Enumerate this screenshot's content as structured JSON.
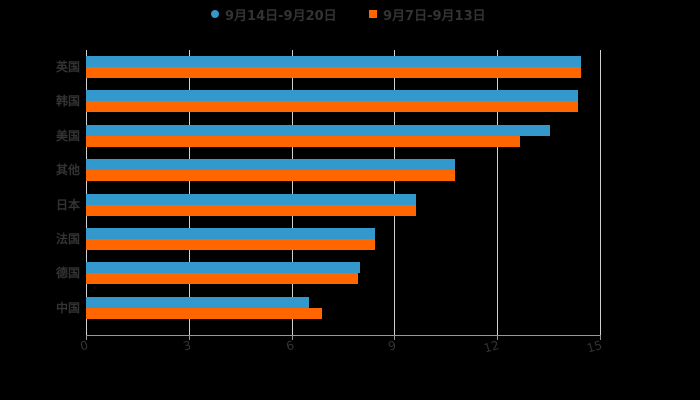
{
  "legend": {
    "series1_label": "9月14日-9月20日",
    "series2_label": "9月7日-9月13日"
  },
  "colors": {
    "series1": "#3399cc",
    "series2": "#ff6600",
    "background": "#000000",
    "text": "#333333",
    "grid": "#d0d0d0"
  },
  "chart_data": {
    "type": "bar",
    "orientation": "horizontal",
    "title": "",
    "xlabel": "",
    "ylabel": "",
    "categories": [
      "英国",
      "韩国",
      "美国",
      "其他",
      "日本",
      "法国",
      "德国",
      "中国"
    ],
    "series": [
      {
        "name": "9月14日-9月20日",
        "values": [
          14.44,
          14.36,
          13.54,
          10.77,
          9.63,
          8.43,
          8.0,
          6.51
        ]
      },
      {
        "name": "9月7日-9月13日",
        "values": [
          14.44,
          14.36,
          12.66,
          10.77,
          9.63,
          8.43,
          7.94,
          6.89
        ]
      }
    ],
    "xlim": [
      0,
      15
    ],
    "xticks": [
      "0",
      "3",
      "6",
      "9",
      "12",
      "15"
    ],
    "grid": true,
    "legend_position": "top"
  }
}
